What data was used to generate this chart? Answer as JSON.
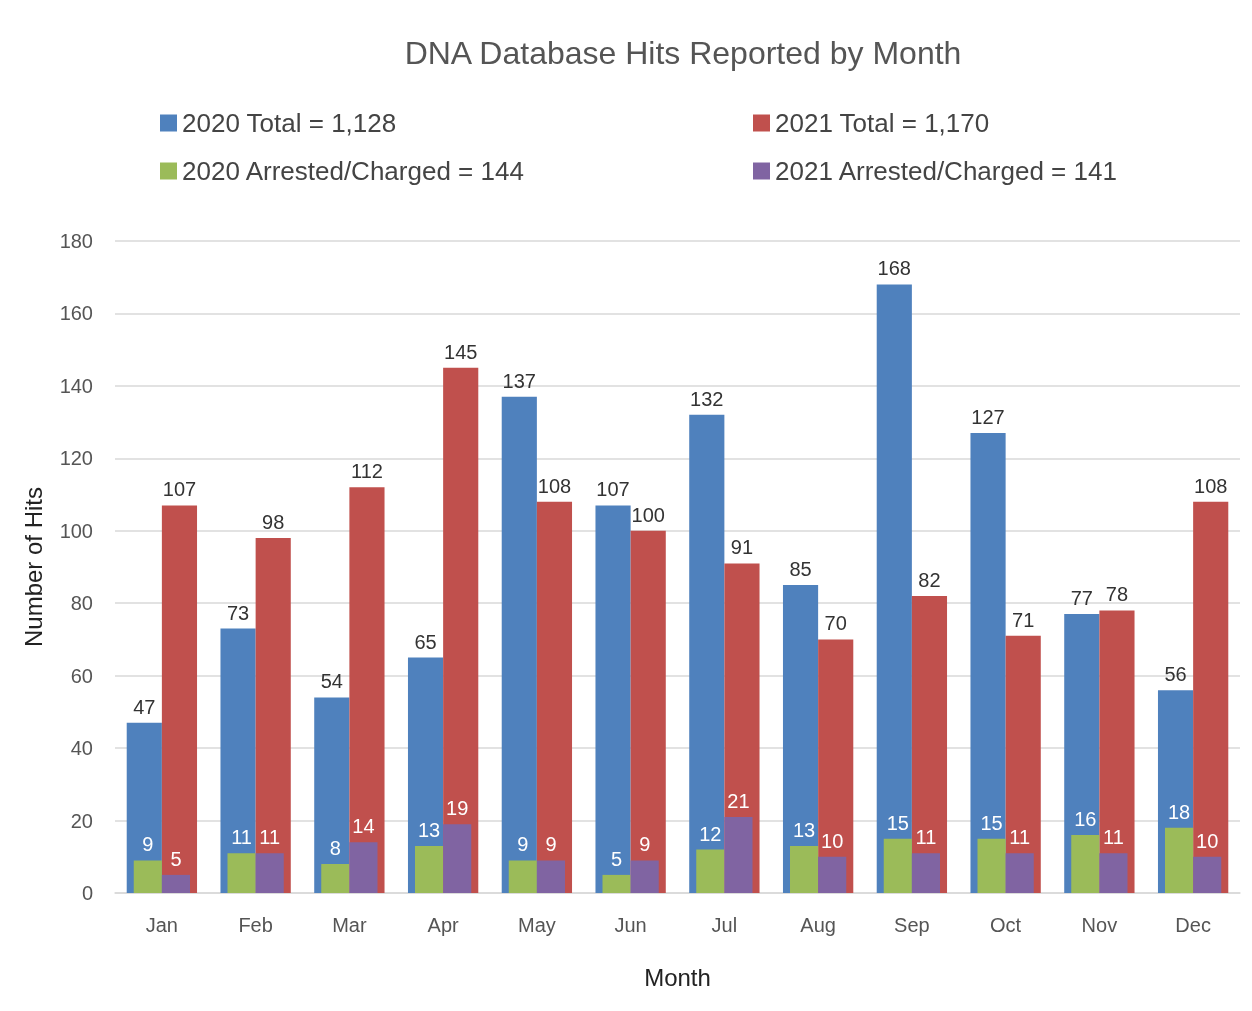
{
  "chart_data": {
    "type": "bar",
    "title": "DNA Database Hits Reported by Month",
    "xlabel": "Month",
    "ylabel": "Number of Hits",
    "categories": [
      "Jan",
      "Feb",
      "Mar",
      "Apr",
      "May",
      "Jun",
      "Jul",
      "Aug",
      "Sep",
      "Oct",
      "Nov",
      "Dec"
    ],
    "series": [
      {
        "name": "2020 Total = 1,128",
        "color": "#4f81bd",
        "values": [
          47,
          73,
          54,
          65,
          137,
          107,
          132,
          85,
          168,
          127,
          77,
          56
        ]
      },
      {
        "name": "2021 Total = 1,170",
        "color": "#c0504d",
        "values": [
          107,
          98,
          112,
          145,
          108,
          100,
          91,
          70,
          82,
          71,
          78,
          108
        ]
      },
      {
        "name": "2020 Arrested/Charged = 144",
        "color": "#9bbb59",
        "values": [
          9,
          11,
          8,
          13,
          9,
          5,
          12,
          13,
          15,
          15,
          16,
          18
        ]
      },
      {
        "name": "2021 Arrested/Charged = 141",
        "color": "#8064a2",
        "values": [
          5,
          11,
          14,
          19,
          9,
          9,
          21,
          10,
          11,
          11,
          11,
          10
        ]
      }
    ],
    "ylim": [
      0,
      180
    ],
    "yticks": [
      0,
      20,
      40,
      60,
      80,
      100,
      120,
      140,
      160,
      180
    ],
    "grid": "y",
    "legend": "top",
    "data_labels": true
  }
}
